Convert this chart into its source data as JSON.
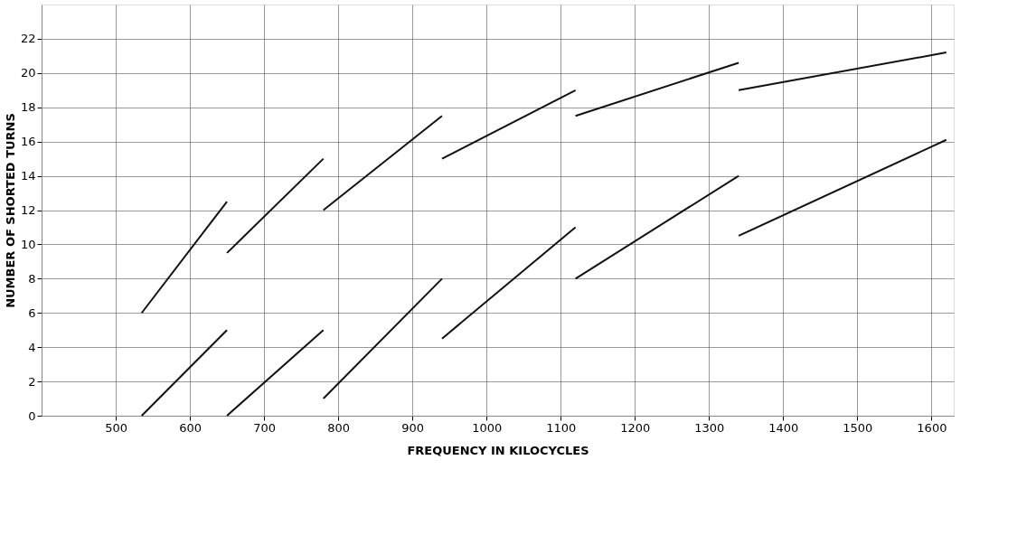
{
  "chart_data": {
    "type": "line",
    "xlabel": "FREQUENCY IN KILOCYCLES",
    "ylabel": "NUMBER OF SHORTED TURNS",
    "xlim": [
      400,
      1630
    ],
    "xticks": [
      500,
      600,
      700,
      800,
      900,
      1000,
      1100,
      1200,
      1300,
      1400,
      1500,
      1600
    ],
    "ylim": [
      0,
      24
    ],
    "yticks": [
      0,
      2,
      4,
      6,
      8,
      10,
      12,
      14,
      16,
      18,
      20,
      22
    ],
    "grid": true,
    "legend": false,
    "marker": "none",
    "line_style": "solid",
    "series": [
      {
        "color": "#111111",
        "x": [
          535,
          650
        ],
        "values": [
          6,
          12.5
        ]
      },
      {
        "color": "#111111",
        "x": [
          650,
          780
        ],
        "values": [
          9.5,
          15
        ]
      },
      {
        "color": "#111111",
        "x": [
          780,
          940
        ],
        "values": [
          12,
          17.5
        ]
      },
      {
        "color": "#111111",
        "x": [
          940,
          1120
        ],
        "values": [
          15,
          19
        ]
      },
      {
        "color": "#111111",
        "x": [
          1120,
          1340
        ],
        "values": [
          17.5,
          20.6
        ]
      },
      {
        "color": "#111111",
        "x": [
          1340,
          1620
        ],
        "values": [
          19,
          21.2
        ]
      },
      {
        "color": "#111111",
        "x": [
          535,
          650
        ],
        "values": [
          0,
          5
        ]
      },
      {
        "color": "#111111",
        "x": [
          650,
          780
        ],
        "values": [
          0,
          5
        ]
      },
      {
        "color": "#111111",
        "x": [
          780,
          940
        ],
        "values": [
          1,
          8
        ]
      },
      {
        "color": "#111111",
        "x": [
          940,
          1120
        ],
        "values": [
          4.5,
          11
        ]
      },
      {
        "color": "#111111",
        "x": [
          1120,
          1340
        ],
        "values": [
          8,
          14
        ]
      },
      {
        "color": "#111111",
        "x": [
          1340,
          1620
        ],
        "values": [
          10.5,
          16.1
        ]
      }
    ]
  }
}
